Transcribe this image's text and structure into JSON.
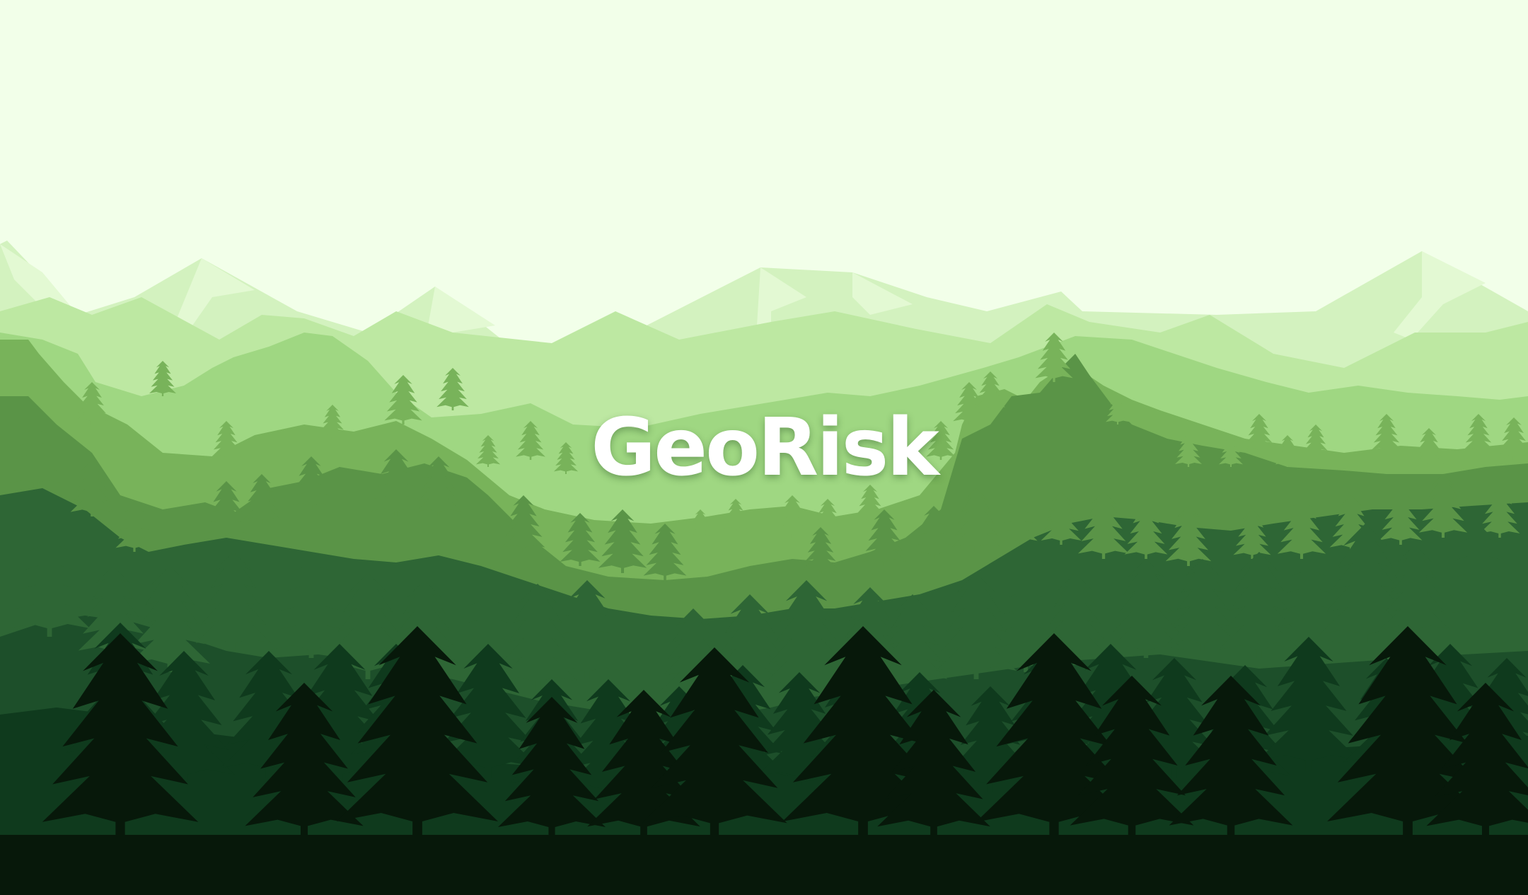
{
  "hero": {
    "title": "GeoRisk"
  },
  "palette": {
    "sky": "#f2ffe9",
    "mountain_far": "#d3f2bf",
    "mountain_mid": "#bde8a2",
    "hills_light": "#9fd782",
    "hills_mid": "#78b35a",
    "forest_mid": "#5a9447",
    "forest_dark": "#2e6635",
    "forest_darker": "#1d4f2a",
    "forest_deep": "#0f3a1d",
    "forest_black": "#07180a",
    "title_color": "#ffffff"
  },
  "illustration": {
    "name": "layered-pine-forest-mountains"
  }
}
